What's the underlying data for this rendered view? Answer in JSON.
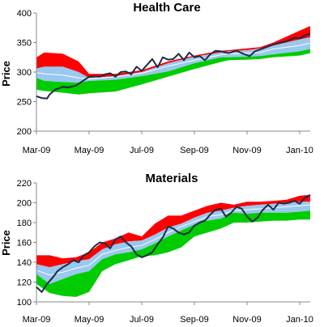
{
  "chart_data": [
    {
      "type": "area",
      "title": "Health Care",
      "xlabel": "",
      "ylabel": "Price",
      "ylim": [
        200,
        400
      ],
      "yticks": [
        "200",
        "250",
        "300",
        "350",
        "400"
      ],
      "xticks": [
        "Mar-09",
        "May-09",
        "Jul-09",
        "Sep-09",
        "Nov-09",
        "Jan-10"
      ],
      "x_positions": [
        0,
        2,
        4,
        6,
        8,
        10
      ],
      "band_x": [
        0,
        0.3,
        1,
        1.6,
        2,
        3,
        4,
        5,
        6,
        7,
        7.3,
        8,
        8.5,
        9,
        10,
        10.4
      ],
      "bands": {
        "green_low": [
          270,
          268,
          265,
          262,
          264,
          267,
          279,
          292,
          305,
          317,
          320,
          321,
          322,
          325,
          328,
          332
        ],
        "blue_low": [
          290,
          285,
          283,
          282,
          285,
          287,
          293,
          301,
          315,
          325,
          325,
          326,
          327,
          330,
          335,
          339
        ],
        "blue_high": [
          306,
          309,
          309,
          300,
          290,
          293,
          300,
          315,
          326,
          333,
          335,
          337,
          340,
          345,
          355,
          359
        ],
        "red_high": [
          325,
          333,
          331,
          318,
          297,
          297,
          303,
          318,
          328,
          336,
          337,
          340,
          342,
          350,
          370,
          378
        ],
        "mid": [
          299,
          297,
          295,
          290,
          288,
          292,
          298,
          310,
          320,
          329,
          331,
          332,
          333,
          339,
          345,
          349
        ]
      },
      "series": [
        {
          "x": [
            0,
            0.2,
            0.4,
            0.5,
            0.7,
            1,
            1.2,
            1.5,
            1.8,
            2,
            2.2,
            2.4,
            2.6,
            2.8,
            3,
            3.2,
            3.4,
            3.6,
            3.8,
            4,
            4.2,
            4.4,
            4.6,
            4.8,
            5,
            5.2,
            5.4,
            5.6,
            5.8,
            6,
            6.2,
            6.4,
            6.6,
            6.8,
            7,
            7.3,
            7.6,
            7.9,
            8.1,
            8.3,
            8.6,
            8.9,
            9.2,
            9.5,
            9.8,
            10,
            10.2,
            10.4
          ],
          "y": [
            259,
            256,
            255,
            262,
            270,
            275,
            274,
            277,
            286,
            292,
            293,
            292,
            296,
            298,
            292,
            300,
            301,
            296,
            309,
            302,
            312,
            322,
            308,
            325,
            321,
            322,
            331,
            320,
            333,
            325,
            327,
            320,
            330,
            336,
            335,
            332,
            336,
            330,
            327,
            335,
            340,
            345,
            349,
            352,
            358,
            357,
            362,
            365
          ]
        }
      ],
      "colors": {
        "red": "#ff0000",
        "blue": "#99c8f0",
        "green": "#00cc00",
        "mid": "#ffffff",
        "price": "#1f2a44"
      }
    },
    {
      "type": "area",
      "title": "Materials",
      "xlabel": "",
      "ylabel": "Price",
      "ylim": [
        100,
        220
      ],
      "yticks": [
        "100",
        "120",
        "140",
        "160",
        "180",
        "200",
        "220"
      ],
      "xticks": [
        "Mar-09",
        "May-09",
        "Jul-09",
        "Sep-09",
        "Nov-09",
        "Jan-10"
      ],
      "x_positions": [
        0,
        2,
        4,
        6,
        8,
        10
      ],
      "band_x": [
        0,
        0.5,
        1,
        1.5,
        2,
        2.5,
        3,
        3.5,
        4,
        4.5,
        5,
        5.5,
        6,
        6.5,
        7,
        7.5,
        8,
        8.5,
        9,
        9.5,
        10,
        10.4
      ],
      "bands": {
        "green_low": [
          118,
          109,
          106,
          105,
          110,
          131,
          138,
          142,
          146,
          147,
          150,
          155,
          166,
          170,
          174,
          180,
          180,
          181,
          182,
          182,
          183,
          183
        ],
        "blue_low": [
          128,
          118,
          123,
          128,
          131,
          143,
          148,
          150,
          153,
          159,
          166,
          172,
          178,
          182,
          184,
          190,
          189,
          190,
          190,
          190,
          191,
          192
        ],
        "blue_high": [
          138,
          135,
          138,
          141,
          143,
          153,
          158,
          161,
          162,
          168,
          175,
          179,
          185,
          190,
          192,
          195,
          197,
          198,
          199,
          200,
          201,
          201
        ],
        "red_high": [
          147,
          147,
          144,
          145,
          150,
          160,
          164,
          170,
          166,
          179,
          187,
          187,
          192,
          197,
          200,
          198,
          201,
          201,
          202,
          203,
          207,
          208
        ],
        "mid": [
          132,
          127,
          130,
          134,
          137,
          148,
          152,
          155,
          157,
          163,
          170,
          176,
          181,
          186,
          188,
          192,
          193,
          194,
          195,
          196,
          197,
          198
        ]
      },
      "series": [
        {
          "x": [
            0,
            0.2,
            0.4,
            0.6,
            0.8,
            1,
            1.2,
            1.4,
            1.6,
            1.8,
            2,
            2.2,
            2.4,
            2.6,
            2.8,
            3,
            3.2,
            3.4,
            3.6,
            3.8,
            4,
            4.2,
            4.4,
            4.6,
            4.8,
            5,
            5.2,
            5.4,
            5.6,
            5.8,
            6,
            6.2,
            6.4,
            6.6,
            6.8,
            7,
            7.2,
            7.4,
            7.6,
            7.8,
            8,
            8.2,
            8.4,
            8.6,
            8.8,
            9,
            9.2,
            9.4,
            9.6,
            9.8,
            10,
            10.2,
            10.4
          ],
          "y": [
            115,
            110,
            118,
            124,
            131,
            135,
            138,
            142,
            140,
            147,
            150,
            156,
            160,
            159,
            154,
            163,
            166,
            160,
            156,
            148,
            145,
            147,
            150,
            158,
            165,
            176,
            174,
            170,
            168,
            170,
            177,
            180,
            182,
            188,
            193,
            194,
            186,
            190,
            196,
            194,
            186,
            181,
            185,
            193,
            198,
            193,
            200,
            199,
            200,
            202,
            199,
            205,
            208
          ]
        }
      ],
      "colors": {
        "red": "#ff0000",
        "blue": "#99c8f0",
        "green": "#00cc00",
        "mid": "#ffffff",
        "price": "#1f2a44"
      }
    }
  ]
}
